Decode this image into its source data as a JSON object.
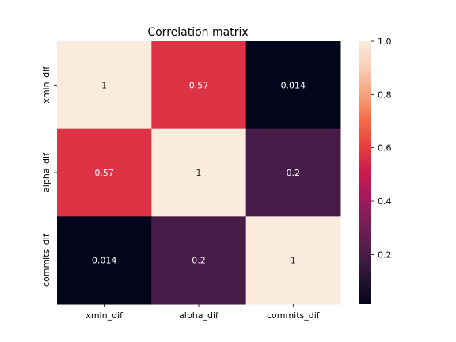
{
  "chart_data": {
    "type": "heatmap",
    "title": "Correlation matrix",
    "x_categories": [
      "xmin_dif",
      "alpha_dif",
      "commits_dif"
    ],
    "y_categories": [
      "xmin_dif",
      "alpha_dif",
      "commits_dif"
    ],
    "values": [
      [
        1,
        0.57,
        0.014
      ],
      [
        0.57,
        1,
        0.2
      ],
      [
        0.014,
        0.2,
        1
      ]
    ],
    "annotations": [
      [
        "1",
        "0.57",
        "0.014"
      ],
      [
        "0.57",
        "1",
        "0.2"
      ],
      [
        "0.014",
        "0.2",
        "1"
      ]
    ],
    "colorbar": {
      "range": [
        0.014,
        1.0
      ],
      "ticks": [
        0.2,
        0.4,
        0.6,
        0.8,
        1.0
      ],
      "tick_labels": [
        "0.2",
        "0.4",
        "0.6",
        "0.8",
        "1.0"
      ],
      "colormap": "rocket"
    },
    "xlabel": "",
    "ylabel": "",
    "grid": false
  }
}
